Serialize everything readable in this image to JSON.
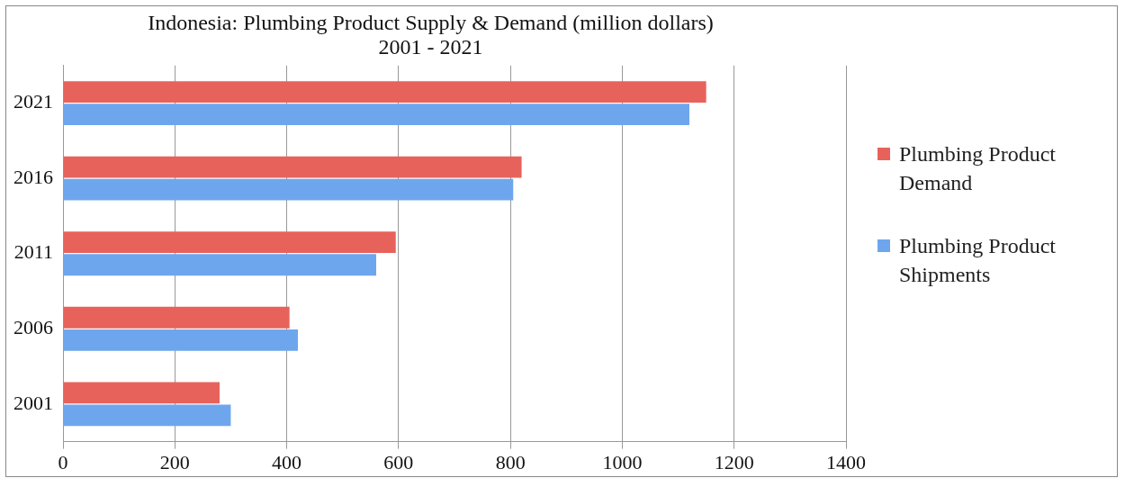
{
  "chart_data": {
    "type": "bar",
    "orientation": "horizontal",
    "title": "Indonesia: Plumbing Product Supply & Demand (million dollars)",
    "subtitle": "2001 - 2021",
    "categories": [
      "2021",
      "2016",
      "2011",
      "2006",
      "2001"
    ],
    "series": [
      {
        "name": "Plumbing Product Demand",
        "color": "#e8625c",
        "values": [
          1150,
          820,
          595,
          405,
          280
        ]
      },
      {
        "name": "Plumbing Product Shipments",
        "color": "#6ea6ee",
        "values": [
          1120,
          805,
          560,
          420,
          300
        ]
      }
    ],
    "xlim": [
      0,
      1400
    ],
    "xticks": [
      0,
      200,
      400,
      600,
      800,
      1000,
      1200,
      1400
    ],
    "grid": "x",
    "legend": "right"
  }
}
